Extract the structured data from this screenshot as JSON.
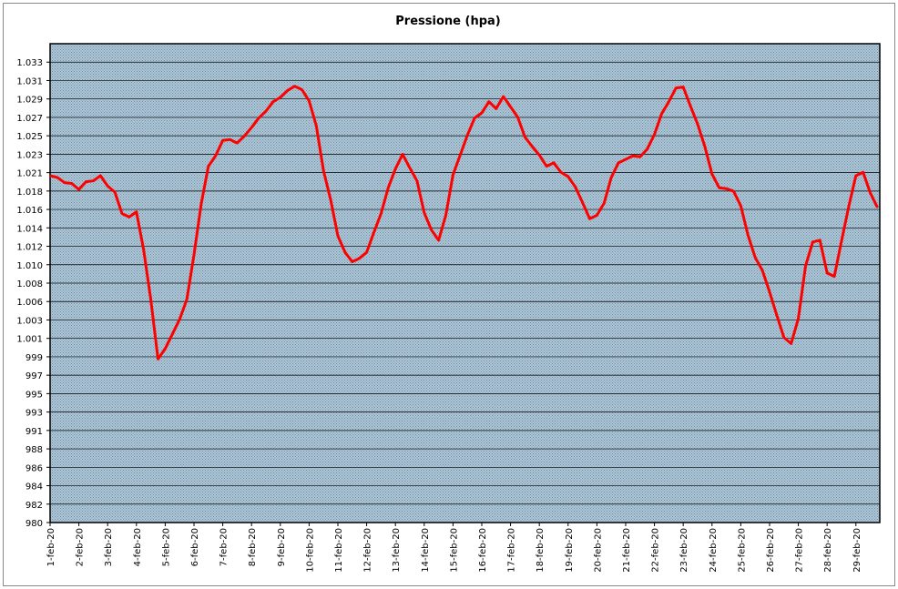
{
  "chart_data": {
    "type": "line",
    "title": "Pressione (hpa)",
    "x": [
      0,
      0.25,
      0.5,
      0.75,
      1,
      1.25,
      1.5,
      1.75,
      2,
      2.25,
      2.5,
      2.75,
      3,
      3.25,
      3.5,
      3.75,
      4,
      4.25,
      4.5,
      4.75,
      5,
      5.25,
      5.5,
      5.75,
      6,
      6.25,
      6.5,
      6.75,
      7,
      7.25,
      7.5,
      7.75,
      8,
      8.25,
      8.5,
      8.75,
      9,
      9.25,
      9.5,
      9.75,
      10,
      10.25,
      10.5,
      10.75,
      11,
      11.25,
      11.5,
      11.75,
      12,
      12.25,
      12.5,
      12.75,
      13,
      13.25,
      13.5,
      13.75,
      14,
      14.25,
      14.5,
      14.75,
      15,
      15.25,
      15.5,
      15.75,
      16,
      16.25,
      16.5,
      16.75,
      17,
      17.25,
      17.5,
      17.75,
      18,
      18.25,
      18.5,
      18.75,
      19,
      19.25,
      19.5,
      19.75,
      20,
      20.25,
      20.5,
      20.75,
      21,
      21.25,
      21.5,
      21.75,
      22,
      22.25,
      22.5,
      22.75,
      23,
      23.25,
      23.5,
      23.75,
      24,
      24.25,
      24.5,
      24.75,
      25,
      25.25,
      25.5,
      25.75,
      26,
      26.25,
      26.5,
      26.75,
      27,
      27.25,
      27.5,
      27.75,
      28,
      28.25,
      28.5,
      28.75
    ],
    "series": [
      {
        "name": "Pressione",
        "color": "#ff0000",
        "values": [
          1020.2,
          1020.0,
          1019.4,
          1019.3,
          1018.6,
          1019.5,
          1019.6,
          1020.2,
          1019.0,
          1018.3,
          1015.8,
          1015.4,
          1016.0,
          1011.6,
          1005.8,
          998.9,
          1000.1,
          1001.8,
          1003.5,
          1005.8,
          1011.0,
          1016.9,
          1021.3,
          1022.5,
          1024.3,
          1024.4,
          1024.0,
          1024.8,
          1025.8,
          1026.9,
          1027.7,
          1028.8,
          1029.3,
          1030.1,
          1030.6,
          1030.2,
          1028.9,
          1026.0,
          1020.8,
          1017.4,
          1013.2,
          1011.3,
          1010.2,
          1010.6,
          1011.3,
          1013.6,
          1015.8,
          1018.8,
          1021.0,
          1022.7,
          1021.1,
          1019.6,
          1015.9,
          1013.9,
          1012.7,
          1015.6,
          1020.3,
          1022.6,
          1024.9,
          1026.9,
          1027.5,
          1028.8,
          1028.0,
          1029.4,
          1028.2,
          1027.0,
          1024.7,
          1023.6,
          1022.6,
          1021.3,
          1021.7,
          1020.6,
          1020.1,
          1018.9,
          1017.1,
          1015.2,
          1015.6,
          1017.0,
          1020.0,
          1021.7,
          1022.1,
          1022.5,
          1022.4,
          1023.3,
          1025.0,
          1027.4,
          1028.8,
          1030.4,
          1030.5,
          1028.3,
          1026.2,
          1023.6,
          1020.4,
          1018.8,
          1018.7,
          1018.4,
          1016.7,
          1013.3,
          1010.7,
          1009.2,
          1006.7,
          1004.0,
          1001.4,
          1000.7,
          1003.6,
          1009.7,
          1012.5,
          1012.7,
          1008.9,
          1008.5,
          1012.6,
          1016.6,
          1020.2,
          1020.6,
          1018.2,
          1016.5
        ]
      }
    ],
    "xlim": [
      0,
      28.83
    ],
    "xticks": [
      {
        "value": 0,
        "label": "1-feb-20"
      },
      {
        "value": 1,
        "label": "2-feb-20"
      },
      {
        "value": 2,
        "label": "3-feb-20"
      },
      {
        "value": 3,
        "label": "4-feb-20"
      },
      {
        "value": 4,
        "label": "5-feb-20"
      },
      {
        "value": 5,
        "label": "6-feb-20"
      },
      {
        "value": 6,
        "label": "7-feb-20"
      },
      {
        "value": 7,
        "label": "8-feb-20"
      },
      {
        "value": 8,
        "label": "9-feb-20"
      },
      {
        "value": 9,
        "label": "10-feb-20"
      },
      {
        "value": 10,
        "label": "11-feb-20"
      },
      {
        "value": 11,
        "label": "12-feb-20"
      },
      {
        "value": 12,
        "label": "13-feb-20"
      },
      {
        "value": 13,
        "label": "14-feb-20"
      },
      {
        "value": 14,
        "label": "15-feb-20"
      },
      {
        "value": 15,
        "label": "16-feb-20"
      },
      {
        "value": 16,
        "label": "17-feb-20"
      },
      {
        "value": 17,
        "label": "18-feb-20"
      },
      {
        "value": 18,
        "label": "19-feb-20"
      },
      {
        "value": 19,
        "label": "20-feb-20"
      },
      {
        "value": 20,
        "label": "21-feb-20"
      },
      {
        "value": 21,
        "label": "22-feb-20"
      },
      {
        "value": 22,
        "label": "23-feb-20"
      },
      {
        "value": 23,
        "label": "24-feb-20"
      },
      {
        "value": 24,
        "label": "25-feb-20"
      },
      {
        "value": 25,
        "label": "26-feb-20"
      },
      {
        "value": 26,
        "label": "27-feb-20"
      },
      {
        "value": 27,
        "label": "28-feb-20"
      },
      {
        "value": 28,
        "label": "29-feb-20"
      }
    ],
    "ylim": [
      979.9,
      1035.54
    ],
    "yticks": [
      {
        "value": 979.9,
        "label": "980"
      },
      {
        "value": 982.04,
        "label": "982"
      },
      {
        "value": 984.18,
        "label": "984"
      },
      {
        "value": 986.32,
        "label": "986"
      },
      {
        "value": 988.46,
        "label": "988"
      },
      {
        "value": 990.6,
        "label": "991"
      },
      {
        "value": 992.74,
        "label": "993"
      },
      {
        "value": 994.88,
        "label": "995"
      },
      {
        "value": 997.02,
        "label": "997"
      },
      {
        "value": 999.16,
        "label": "999"
      },
      {
        "value": 1001.3,
        "label": "1.001"
      },
      {
        "value": 1003.44,
        "label": "1.003"
      },
      {
        "value": 1005.58,
        "label": "1.006"
      },
      {
        "value": 1007.72,
        "label": "1.008"
      },
      {
        "value": 1009.86,
        "label": "1.010"
      },
      {
        "value": 1012.0,
        "label": "1.012"
      },
      {
        "value": 1014.14,
        "label": "1.014"
      },
      {
        "value": 1016.28,
        "label": "1.016"
      },
      {
        "value": 1018.42,
        "label": "1.018"
      },
      {
        "value": 1020.56,
        "label": "1.021"
      },
      {
        "value": 1022.7,
        "label": "1.023"
      },
      {
        "value": 1024.84,
        "label": "1.025"
      },
      {
        "value": 1026.98,
        "label": "1.027"
      },
      {
        "value": 1029.12,
        "label": "1.029"
      },
      {
        "value": 1031.26,
        "label": "1.031"
      },
      {
        "value": 1033.4,
        "label": "1.033"
      }
    ],
    "grid": true
  }
}
